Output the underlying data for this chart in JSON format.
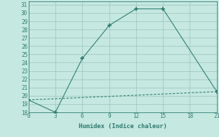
{
  "xlabel": "Humidex (Indice chaleur)",
  "line1_x": [
    0,
    3,
    6,
    9,
    12,
    15,
    21
  ],
  "line1_y": [
    19.5,
    18.0,
    24.5,
    28.5,
    30.5,
    30.5,
    20.5
  ],
  "line2_x": [
    0,
    21
  ],
  "line2_y": [
    19.5,
    20.5
  ],
  "color": "#2d7a6e",
  "bg_color": "#c5e8e0",
  "grid_color": "#a0c8c0",
  "xlim": [
    0,
    21
  ],
  "ylim": [
    18,
    31.4
  ],
  "xticks": [
    0,
    3,
    6,
    9,
    12,
    15,
    18,
    21
  ],
  "yticks": [
    18,
    19,
    20,
    21,
    22,
    23,
    24,
    25,
    26,
    27,
    28,
    29,
    30,
    31
  ]
}
